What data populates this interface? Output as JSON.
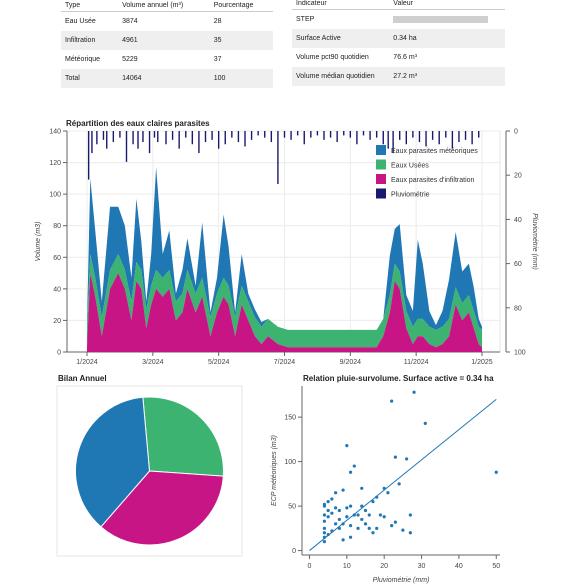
{
  "volume_table": {
    "headers": [
      "Type",
      "Volume annuel (m³)",
      "Pourcentage"
    ],
    "rows": [
      [
        "Eau Usée",
        "3874",
        "28"
      ],
      [
        "Infiltration",
        "4961",
        "35"
      ],
      [
        "Météorique",
        "5229",
        "37"
      ],
      [
        "Total",
        "14064",
        "100"
      ]
    ]
  },
  "indicator_table": {
    "headers": [
      "Indicateur",
      "Valeur"
    ],
    "rows": [
      [
        "STEP",
        ""
      ],
      [
        "Surface Active",
        "0.34 ha"
      ],
      [
        "Volume pct90 quotidien",
        "76.6 m³"
      ],
      [
        "Volume médian quotidien",
        "27.2 m³"
      ]
    ]
  },
  "colors": {
    "meteo": "#1f77b4",
    "usees": "#3cb371",
    "infiltration": "#c71585",
    "pluvio": "#191970",
    "table_alt_row": "#efefef"
  },
  "chart_data": [
    {
      "type": "area",
      "title": "Répartition des eaux claires parasites",
      "ylabel": "Volume (m3)",
      "y2label": "Pluviométrie (mm)",
      "ylim": [
        0,
        140
      ],
      "y2lim": [
        100,
        0
      ],
      "yticks": [
        0,
        20,
        40,
        60,
        80,
        100,
        120,
        140
      ],
      "y2ticks": [
        0,
        20,
        40,
        60,
        80,
        100
      ],
      "xticks": [
        "1/2024",
        "3/2024",
        "5/2024",
        "7/2024",
        "9/2024",
        "11/2024",
        "1/2025"
      ],
      "xrange_months": [
        0,
        12.2
      ],
      "legend_position": "top-right",
      "legend": [
        "Eaux parasites météoriques",
        "Eaux Usées",
        "Eaux parasites d'infiltration",
        "Pluviométrie"
      ],
      "x_month": [
        0,
        0.1,
        0.25,
        0.45,
        0.7,
        0.95,
        1.15,
        1.35,
        1.5,
        1.65,
        1.8,
        1.95,
        2.1,
        2.3,
        2.5,
        2.7,
        2.9,
        3.05,
        3.3,
        3.5,
        3.75,
        3.95,
        4.15,
        4.3,
        4.5,
        4.7,
        4.9,
        5.1,
        5.3,
        5.5,
        5.8,
        6.1,
        6.4,
        6.8,
        7.2,
        7.6,
        8.0,
        8.4,
        8.8,
        9.0,
        9.2,
        9.35,
        9.5,
        9.7,
        9.9,
        10.05,
        10.2,
        10.4,
        10.6,
        10.8,
        11.0,
        11.2,
        11.4,
        11.6,
        11.75,
        11.9,
        12.0
      ],
      "infiltration": [
        3,
        50,
        35,
        10,
        40,
        50,
        40,
        20,
        45,
        40,
        15,
        30,
        40,
        35,
        40,
        20,
        25,
        40,
        25,
        35,
        10,
        25,
        35,
        30,
        10,
        30,
        20,
        10,
        5,
        10,
        5,
        3,
        3,
        3,
        3,
        3,
        3,
        3,
        3,
        10,
        25,
        45,
        40,
        15,
        5,
        10,
        10,
        5,
        3,
        5,
        10,
        30,
        20,
        25,
        15,
        5,
        3
      ],
      "usees": [
        13,
        12,
        12,
        12,
        12,
        12,
        12,
        12,
        12,
        12,
        12,
        12,
        12,
        12,
        12,
        12,
        12,
        12,
        12,
        12,
        12,
        12,
        12,
        12,
        12,
        12,
        12,
        12,
        11,
        11,
        11,
        11,
        11,
        11,
        11,
        11,
        11,
        11,
        11,
        11,
        11,
        11,
        11,
        11,
        11,
        11,
        11,
        11,
        11,
        11,
        11,
        11,
        11,
        11,
        11,
        11,
        11
      ],
      "meteo": [
        2,
        48,
        30,
        10,
        40,
        30,
        28,
        15,
        40,
        18,
        5,
        20,
        65,
        15,
        25,
        5,
        15,
        20,
        5,
        35,
        3,
        10,
        40,
        25,
        3,
        20,
        5,
        5,
        3,
        0,
        0,
        0,
        0,
        0,
        0,
        0,
        0,
        0,
        0,
        0,
        25,
        22,
        30,
        10,
        10,
        50,
        35,
        10,
        3,
        10,
        25,
        35,
        20,
        20,
        15,
        5,
        2
      ],
      "pluvio_x_month": [
        0.05,
        0.15,
        0.3,
        0.5,
        0.6,
        0.8,
        1.0,
        1.2,
        1.4,
        1.55,
        1.7,
        1.9,
        2.05,
        2.15,
        2.4,
        2.6,
        2.8,
        3.0,
        3.2,
        3.4,
        3.6,
        3.8,
        4.0,
        4.2,
        4.4,
        4.6,
        4.8,
        5.0,
        5.2,
        5.4,
        5.6,
        5.8,
        6.0,
        6.2,
        6.4,
        6.6,
        6.8,
        7.0,
        7.2,
        7.4,
        7.6,
        7.8,
        8.0,
        8.2,
        8.4,
        8.6,
        8.8,
        9.0,
        9.15,
        9.3,
        9.5,
        9.7,
        9.9,
        10.1,
        10.3,
        10.5,
        10.7,
        10.9,
        11.1,
        11.3,
        11.5,
        11.7,
        11.9
      ],
      "pluvio_mm": [
        22,
        10,
        6,
        4,
        8,
        5,
        3,
        14,
        6,
        8,
        5,
        10,
        3,
        5,
        6,
        4,
        8,
        3,
        6,
        10,
        5,
        4,
        8,
        6,
        3,
        5,
        7,
        4,
        2,
        3,
        5,
        24,
        3,
        4,
        2,
        6,
        3,
        2,
        4,
        3,
        5,
        2,
        3,
        6,
        2,
        4,
        3,
        6,
        8,
        10,
        4,
        6,
        3,
        5,
        7,
        4,
        6,
        3,
        8,
        5,
        4,
        6,
        3
      ]
    },
    {
      "type": "pie",
      "title": "Bilan Annuel",
      "labels": [
        "Eaux Usées",
        "Eaux parasites d'infiltration",
        "Eaux parasites météoriques"
      ],
      "values": [
        3874,
        4961,
        5229
      ]
    },
    {
      "type": "scatter",
      "title": "Relation pluie-survolume. Surface active = 0.34 ha",
      "xlabel": "Pluviométrie (mm)",
      "ylabel": "ECP météoriques (m3)",
      "xlim": [
        -2,
        51
      ],
      "ylim": [
        -5,
        185
      ],
      "xticks": [
        0,
        10,
        20,
        30,
        40,
        50
      ],
      "yticks": [
        0,
        50,
        100,
        150
      ],
      "trend_line": [
        [
          0,
          0
        ],
        [
          50,
          170
        ]
      ],
      "points": [
        [
          4,
          10
        ],
        [
          4,
          15
        ],
        [
          4,
          20
        ],
        [
          4,
          25
        ],
        [
          4,
          33
        ],
        [
          4,
          40
        ],
        [
          4,
          50
        ],
        [
          4,
          52
        ],
        [
          5,
          18
        ],
        [
          5,
          38
        ],
        [
          5,
          45
        ],
        [
          5,
          55
        ],
        [
          6,
          22
        ],
        [
          6,
          42
        ],
        [
          6,
          58
        ],
        [
          7,
          30
        ],
        [
          7,
          48
        ],
        [
          7,
          65
        ],
        [
          8,
          25
        ],
        [
          8,
          35
        ],
        [
          8,
          45
        ],
        [
          9,
          30
        ],
        [
          9,
          12
        ],
        [
          9,
          68
        ],
        [
          10,
          38
        ],
        [
          10,
          48
        ],
        [
          10,
          118
        ],
        [
          11,
          15
        ],
        [
          11,
          28
        ],
        [
          11,
          50
        ],
        [
          11,
          88
        ],
        [
          12,
          40
        ],
        [
          12,
          95
        ],
        [
          13,
          25
        ],
        [
          13,
          40
        ],
        [
          14,
          35
        ],
        [
          14,
          50
        ],
        [
          14,
          70
        ],
        [
          15,
          30
        ],
        [
          15,
          45
        ],
        [
          16,
          25
        ],
        [
          16,
          40
        ],
        [
          17,
          20
        ],
        [
          17,
          55
        ],
        [
          18,
          25
        ],
        [
          18,
          60
        ],
        [
          19,
          40
        ],
        [
          20,
          70
        ],
        [
          20,
          38
        ],
        [
          21,
          65
        ],
        [
          22,
          168
        ],
        [
          22,
          28
        ],
        [
          23,
          32
        ],
        [
          23,
          105
        ],
        [
          24,
          75
        ],
        [
          25,
          23
        ],
        [
          26,
          103
        ],
        [
          27,
          40
        ],
        [
          27,
          20
        ],
        [
          28,
          178
        ],
        [
          31,
          143
        ],
        [
          50,
          88
        ]
      ]
    }
  ]
}
